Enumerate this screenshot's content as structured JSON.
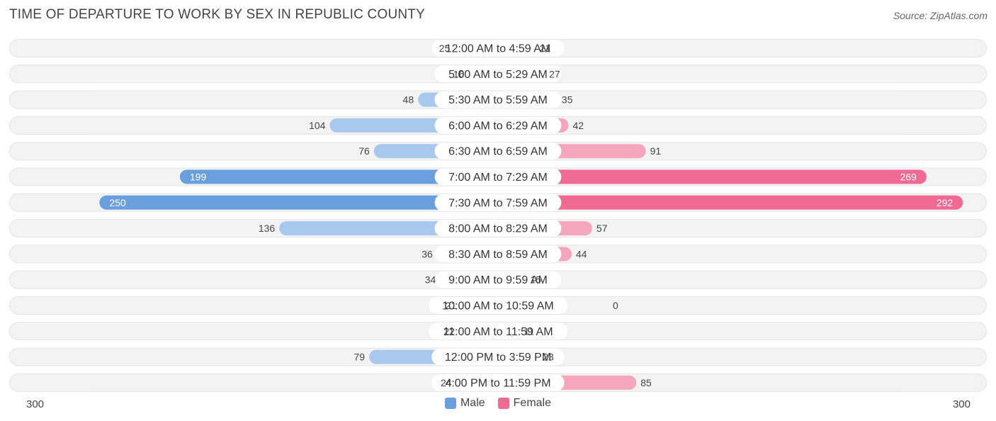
{
  "title": "TIME OF DEPARTURE TO WORK BY SEX IN REPUBLIC COUNTY",
  "source": "Source: ZipAtlas.com",
  "colors": {
    "male": "#6a9fdd",
    "male_light": "#a9c8ed",
    "female": "#f06a94",
    "female_light": "#f5a6be",
    "row_bg": "#efefef"
  },
  "legend": {
    "male": "Male",
    "female": "Female"
  },
  "axis": {
    "left_label": "300",
    "right_label": "300"
  },
  "chart_data": {
    "type": "bar",
    "orientation": "horizontal-diverging",
    "categories": [
      "12:00 AM to 4:59 AM",
      "5:00 AM to 5:29 AM",
      "5:30 AM to 5:59 AM",
      "6:00 AM to 6:29 AM",
      "6:30 AM to 6:59 AM",
      "7:00 AM to 7:29 AM",
      "7:30 AM to 7:59 AM",
      "8:00 AM to 8:29 AM",
      "8:30 AM to 8:59 AM",
      "9:00 AM to 9:59 AM",
      "10:00 AM to 10:59 AM",
      "11:00 AM to 11:59 AM",
      "12:00 PM to 3:59 PM",
      "4:00 PM to 11:59 PM"
    ],
    "series": [
      {
        "name": "Male",
        "values": [
          25,
          16,
          48,
          104,
          76,
          199,
          250,
          136,
          36,
          34,
          21,
          22,
          79,
          24
        ]
      },
      {
        "name": "Female",
        "values": [
          21,
          27,
          35,
          42,
          91,
          269,
          292,
          57,
          44,
          15,
          0,
          11,
          23,
          85
        ]
      }
    ],
    "xlim": [
      -300,
      300
    ]
  }
}
